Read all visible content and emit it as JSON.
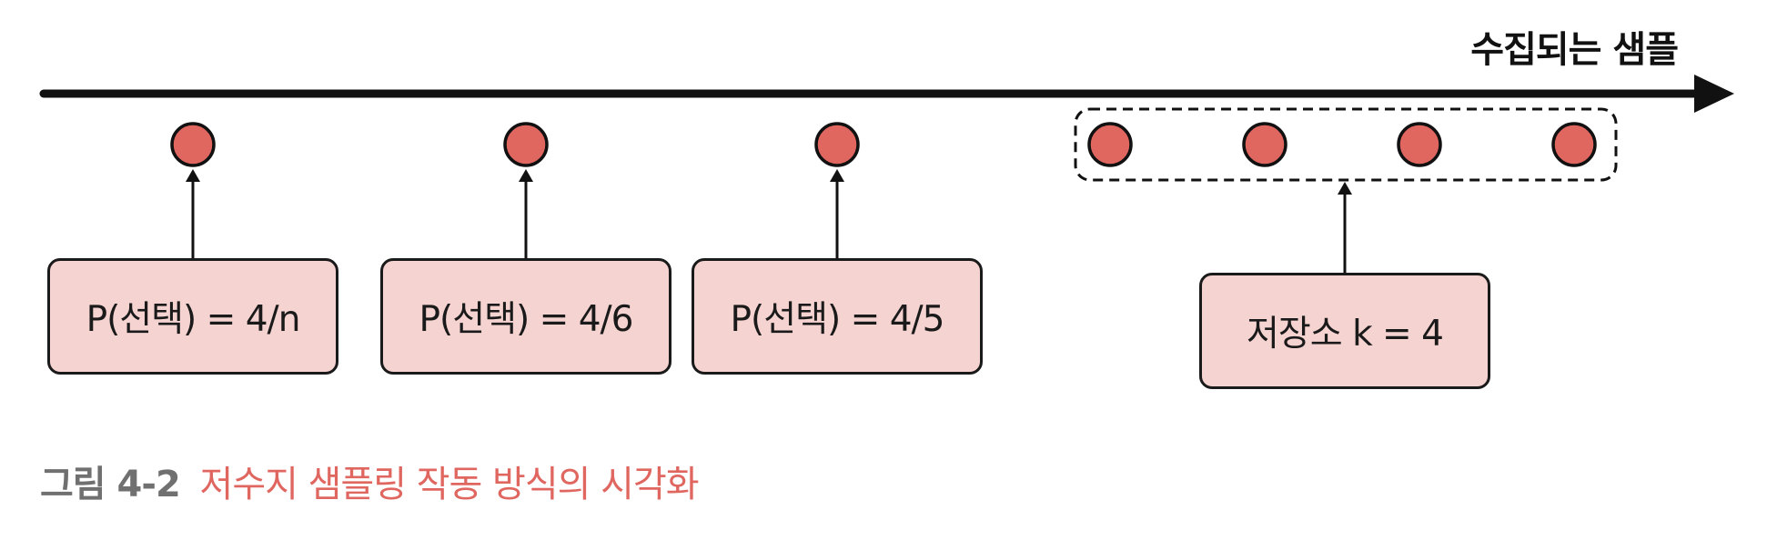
{
  "axis": {
    "label": "수집되는 샘플"
  },
  "boxes": [
    {
      "label": "P(선택) = 4/n"
    },
    {
      "label": "P(선택) = 4/6"
    },
    {
      "label": "P(선택) = 4/5"
    },
    {
      "label": "저장소 k = 4"
    }
  ],
  "samples": {
    "count": 7,
    "reservoir_count": 4
  },
  "caption": {
    "number": "그림 4-2",
    "title": "저수지 샘플링 작동 방식의 시각화"
  },
  "colors": {
    "sample_fill": "#e06660",
    "box_fill": "#f5d3d1",
    "line": "#111111",
    "caption_number": "#707070",
    "caption_title": "#e06660"
  }
}
